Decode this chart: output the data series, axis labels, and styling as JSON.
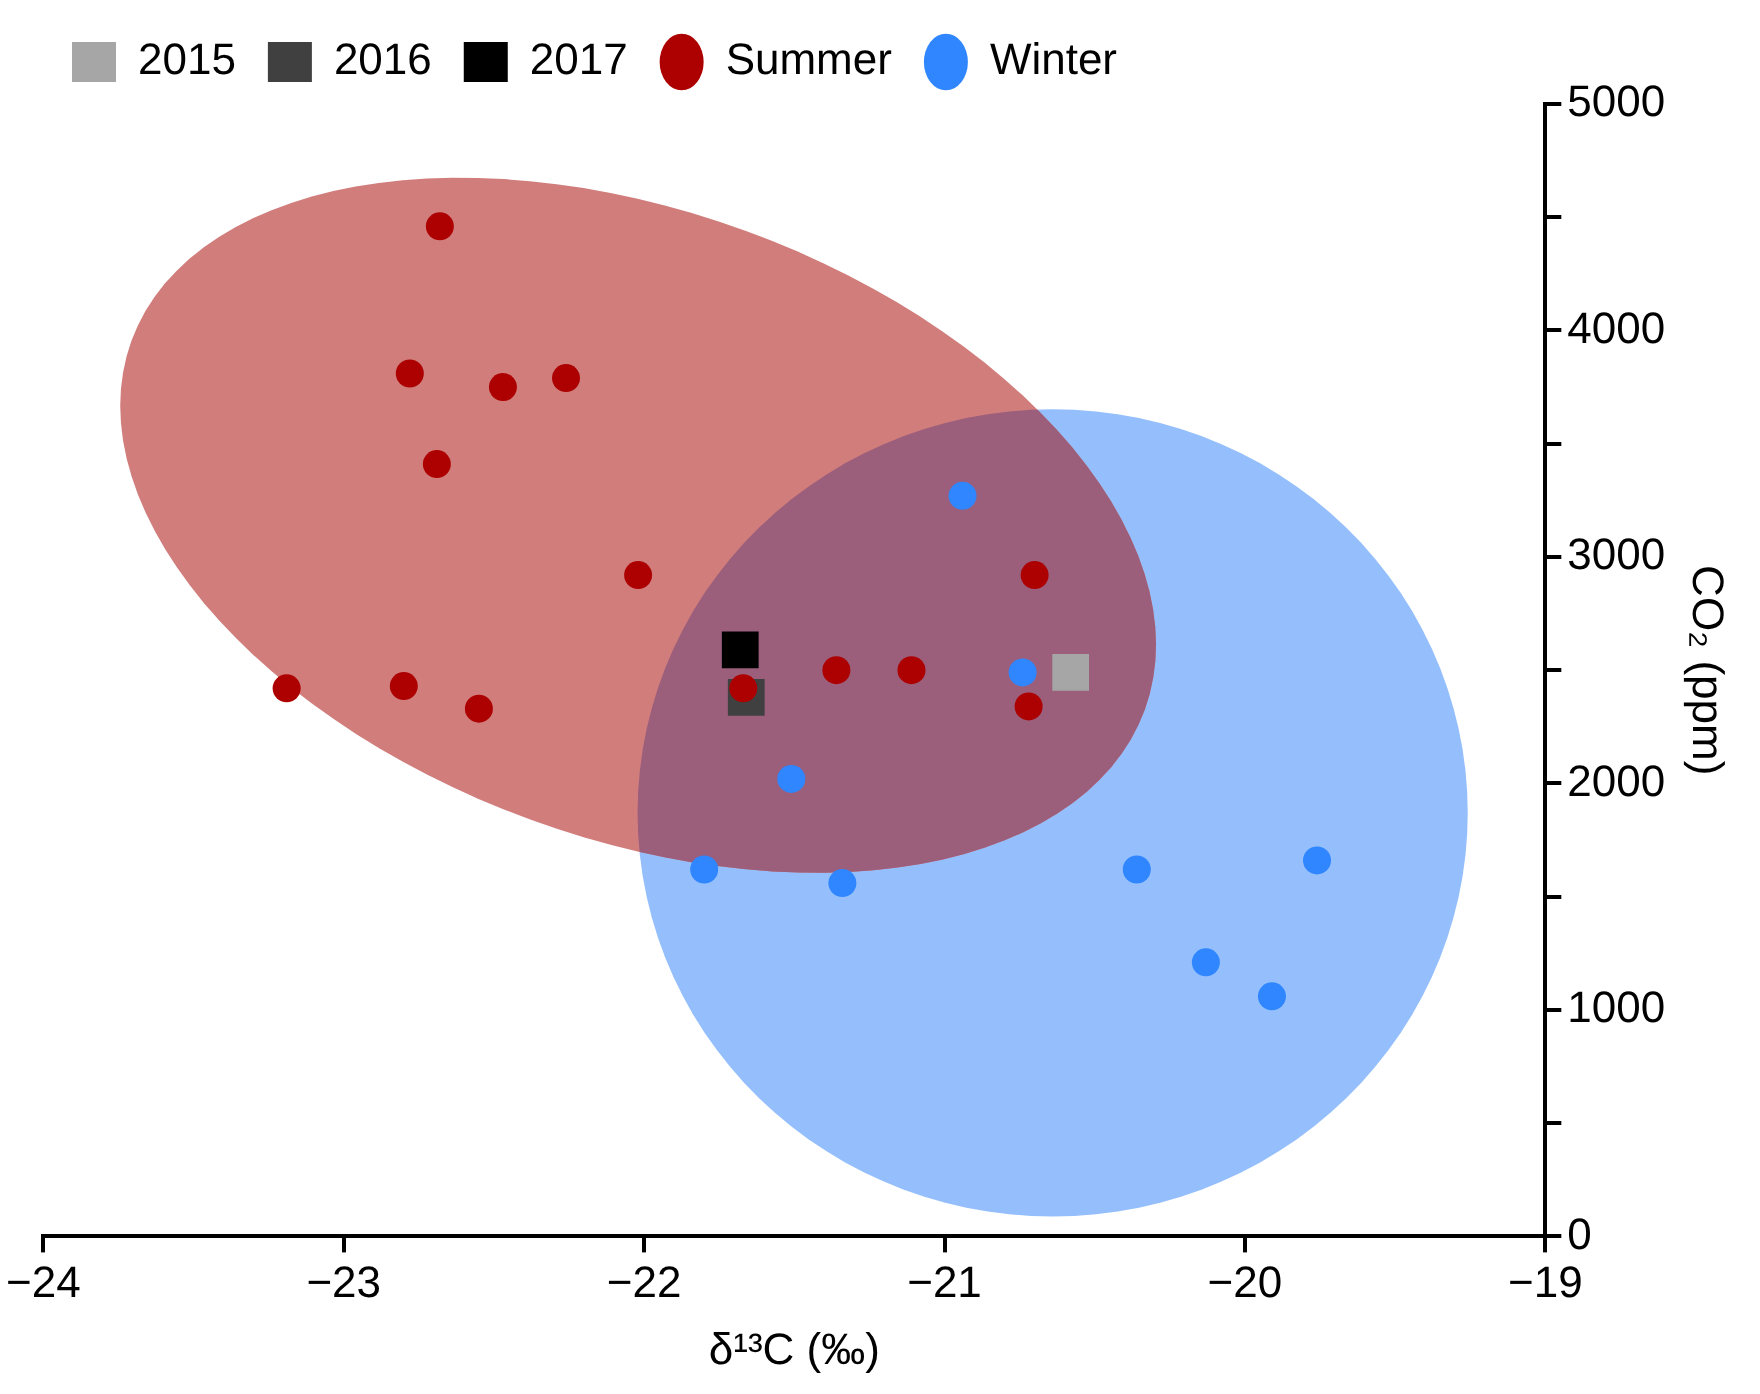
{
  "chart_data": {
    "type": "scatter",
    "xlabel": "δ¹³C (‰)",
    "ylabel": "CO₂ (ppm)",
    "xlim": [
      -24,
      -19
    ],
    "xticks": [
      -24,
      -23,
      -22,
      -21,
      -20,
      -19
    ],
    "ylim": [
      0,
      5000
    ],
    "yticks": [
      0,
      {
        "value": 500,
        "label": null
      },
      1000,
      {
        "value": 1500,
        "label": null
      },
      2000,
      {
        "value": 2500,
        "label": null
      },
      3000,
      {
        "value": 3500,
        "label": null
      },
      4000,
      {
        "value": 4500,
        "label": null
      },
      5000
    ],
    "grid": false,
    "legend": "top left",
    "series": [
      {
        "name": "2015",
        "color": "#a6a6a6",
        "marker": "square",
        "x": [
          -20.58
        ],
        "values": [
          2490
        ]
      },
      {
        "name": "2016",
        "color": "#404040",
        "marker": "square",
        "x": [
          -21.66
        ],
        "values": [
          2380
        ]
      },
      {
        "name": "2017",
        "color": "#000000",
        "marker": "square",
        "x": [
          -21.68
        ],
        "values": [
          2590
        ]
      },
      {
        "name": "Summer",
        "color": "#ad0000",
        "marker": "circle",
        "x": [
          -22.68,
          -22.78,
          -22.47,
          -22.26,
          -22.69,
          -22.02,
          -23.19,
          -22.8,
          -22.55,
          -21.67,
          -21.36,
          -21.11,
          -20.7,
          -20.72
        ],
        "values": [
          4460,
          3810,
          3750,
          3790,
          3410,
          2920,
          2420,
          2430,
          2330,
          2420,
          2500,
          2500,
          2920,
          2340
        ]
      },
      {
        "name": "Winter",
        "color": "#2f86ff",
        "marker": "circle",
        "x": [
          -20.94,
          -20.74,
          -21.51,
          -21.8,
          -21.34,
          -20.36,
          -19.76,
          -20.13,
          -19.91
        ],
        "values": [
          3270,
          2490,
          2020,
          1620,
          1560,
          1620,
          1660,
          1210,
          1060
        ]
      }
    ]
  }
}
